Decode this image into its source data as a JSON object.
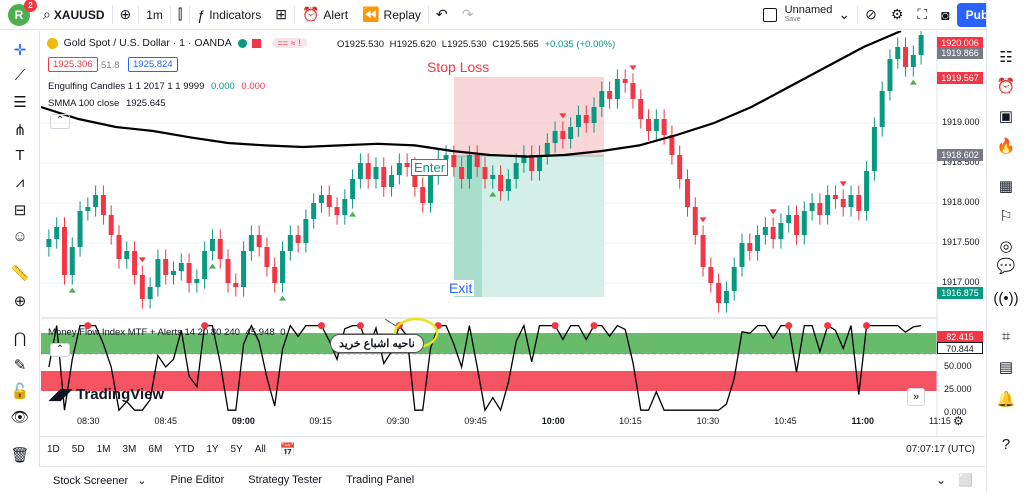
{
  "topbar": {
    "avatar_letter": "R",
    "notification_count": "2",
    "symbol": "XAUUSD",
    "interval": "1m",
    "indicators_label": "Indicators",
    "alert_label": "Alert",
    "replay_label": "Replay",
    "layout_name": "Unnamed",
    "layout_status": "Save",
    "publish_label": "Publish"
  },
  "legend": {
    "title": "Gold Spot / U.S. Dollar · 1 · OANDA",
    "open": "O1925.530",
    "high": "H1925.620",
    "low": "L1925.530",
    "close": "C1925.565",
    "change": "+0.035 (+0.00%)",
    "bid": "1925.306",
    "spread": "51.8",
    "ask": "1925.824",
    "indicator1": "Engulfing Candles 1 1 2017 1 1 9999",
    "indicator1_v1": "0.000",
    "indicator1_v2": "0.000",
    "indicator2": "SMMA 100 close",
    "indicator2_value": "1925.645"
  },
  "annotations": {
    "stop_loss": "Stop Loss",
    "enter": "Enter",
    "exit": "Exit",
    "callout_text": "ناحیه اشباع خرید",
    "watermark": "TradingView"
  },
  "price_axis": {
    "tags": [
      {
        "label": "1920.006",
        "color": "#f23645"
      },
      {
        "label": "1919.866",
        "color": "#787b86"
      },
      {
        "label": "1919.567",
        "color": "#f23645"
      },
      {
        "label": "1918.602",
        "color": "#787b86"
      },
      {
        "label": "1916.875",
        "color": "#089981"
      }
    ],
    "ticks": [
      "1919.000",
      "1918.500",
      "1918.000",
      "1917.500",
      "1917.000"
    ]
  },
  "mfi": {
    "legend": "Money Flow Index MTF + Alerts 14 20 80 240",
    "value1": "45.948",
    "value2": "0",
    "tags": [
      {
        "label": "82.415",
        "color": "#f23645"
      },
      {
        "label": "70.844",
        "color": "#131722"
      }
    ],
    "ticks": [
      "50.000",
      "25.000",
      "0.000"
    ]
  },
  "time_axis": [
    "08:30",
    "08:45",
    "09:00",
    "09:15",
    "09:30",
    "09:45",
    "10:00",
    "10:15",
    "10:30",
    "10:45",
    "11:00",
    "11:15"
  ],
  "bottom": {
    "timeframes": [
      "1D",
      "5D",
      "1M",
      "3M",
      "6M",
      "YTD",
      "1Y",
      "5Y",
      "All"
    ],
    "clock": "07:07:17 (UTC)"
  },
  "footer": {
    "panels": [
      "Stock Screener",
      "Pine Editor",
      "Strategy Tester",
      "Trading Panel"
    ]
  },
  "chart_data": {
    "type": "candlestick",
    "title": "Gold Spot / U.S. Dollar · 1 · OANDA",
    "symbol": "XAUUSD",
    "ylim": [
      1916.6,
      1920.1
    ],
    "price_ticks": [
      1919.0,
      1918.5,
      1918.0,
      1917.5,
      1917.0
    ],
    "trade": {
      "entry": 1918.6,
      "stop_loss": 1919.56,
      "take_profit": 1916.88
    },
    "closes": [
      1917.55,
      1917.7,
      1917.1,
      1917.45,
      1917.9,
      1917.95,
      1918.1,
      1917.85,
      1917.6,
      1917.3,
      1917.4,
      1917.1,
      1916.8,
      1916.95,
      1917.3,
      1917.1,
      1917.15,
      1917.25,
      1917.0,
      1917.05,
      1917.4,
      1917.55,
      1917.3,
      1917.0,
      1916.95,
      1917.4,
      1917.6,
      1917.45,
      1917.2,
      1917.0,
      1917.4,
      1917.6,
      1917.5,
      1917.8,
      1918.0,
      1918.1,
      1917.95,
      1917.85,
      1918.05,
      1918.3,
      1918.5,
      1918.3,
      1918.45,
      1918.2,
      1918.35,
      1918.5,
      1918.45,
      1918.2,
      1918.0,
      1918.35,
      1918.55,
      1918.6,
      1918.45,
      1918.3,
      1918.6,
      1918.45,
      1918.3,
      1918.35,
      1918.15,
      1918.3,
      1918.5,
      1918.6,
      1918.4,
      1918.6,
      1918.75,
      1918.9,
      1918.8,
      1918.95,
      1919.1,
      1919.0,
      1919.2,
      1919.4,
      1919.3,
      1919.55,
      1919.5,
      1919.3,
      1919.05,
      1918.9,
      1919.05,
      1918.85,
      1918.6,
      1918.3,
      1917.95,
      1917.6,
      1917.2,
      1917.0,
      1916.75,
      1916.9,
      1917.2,
      1917.5,
      1917.4,
      1917.6,
      1917.7,
      1917.55,
      1917.75,
      1917.85,
      1917.6,
      1917.9,
      1918.0,
      1917.85,
      1918.1,
      1918.05,
      1917.95,
      1918.1,
      1917.9,
      1918.4,
      1918.95,
      1919.4,
      1919.8,
      1919.95,
      1919.7,
      1919.85,
      1920.1
    ],
    "smma": [
      1919.2,
      1919.05,
      1918.95,
      1918.9,
      1918.82,
      1918.75,
      1918.72,
      1918.7,
      1918.72,
      1918.74,
      1918.72,
      1918.65,
      1918.6,
      1918.58,
      1918.6,
      1918.65,
      1918.72,
      1918.85,
      1919.0,
      1919.2,
      1919.45,
      1919.7,
      1919.95,
      1920.15
    ],
    "mfi_overbought": 80,
    "mfi_oversold": 20,
    "mfi_ylim": [
      0,
      100
    ]
  }
}
